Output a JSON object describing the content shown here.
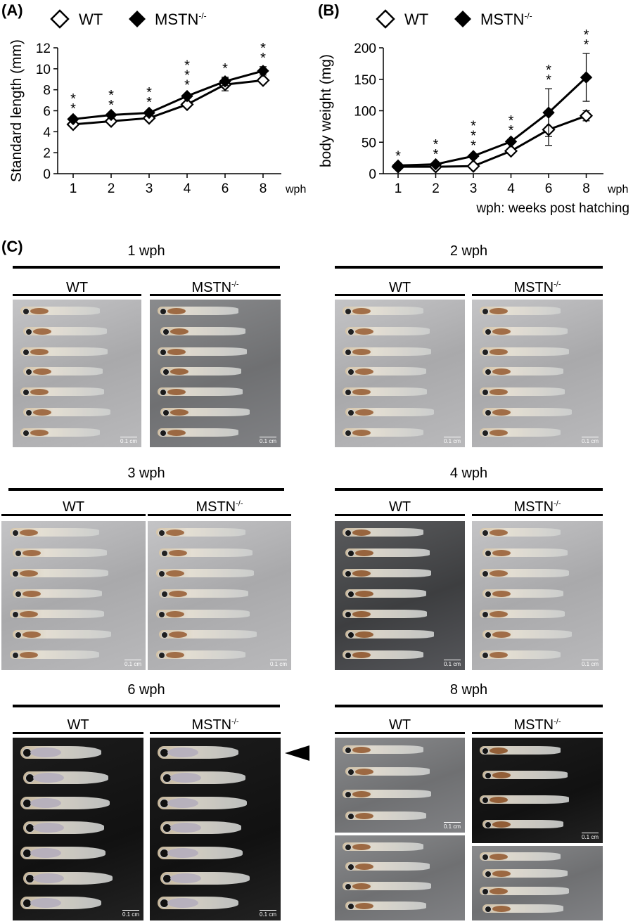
{
  "panel_a": {
    "label": "(A)"
  },
  "panel_b": {
    "label": "(B)"
  },
  "panel_c": {
    "label": "(C)"
  },
  "legend": {
    "wt": "WT",
    "mstn": "MSTN",
    "mstn_sup": "-/-"
  },
  "footnote": "wph: weeks post hatching",
  "chart_data": [
    {
      "type": "line",
      "ylabel": "Standard length (mm)",
      "xlabel_unit": "wph",
      "categories": [
        "1",
        "2",
        "3",
        "4",
        "6",
        "8"
      ],
      "ylim": [
        0,
        12
      ],
      "yticks": [
        0,
        2,
        4,
        6,
        8,
        10,
        12
      ],
      "series": [
        {
          "name": "WT",
          "marker": "open-diamond",
          "values": [
            4.7,
            5.0,
            5.3,
            6.6,
            8.5,
            8.9
          ],
          "errors": [
            0.15,
            0.1,
            0.15,
            0.2,
            0.6,
            0.3
          ]
        },
        {
          "name": "MSTN-/-",
          "marker": "filled-diamond",
          "values": [
            5.2,
            5.6,
            5.8,
            7.4,
            8.8,
            9.8
          ],
          "errors": [
            0.15,
            0.1,
            0.15,
            0.2,
            0.4,
            0.4
          ]
        }
      ],
      "significance": [
        "**",
        "**",
        "**",
        "***",
        "*",
        "**"
      ]
    },
    {
      "type": "line",
      "ylabel": "body weight (mg)",
      "xlabel_unit": "wph",
      "categories": [
        "1",
        "2",
        "3",
        "4",
        "6",
        "8"
      ],
      "ylim": [
        0,
        200
      ],
      "yticks": [
        0,
        50,
        100,
        150,
        200
      ],
      "series": [
        {
          "name": "WT",
          "marker": "open-diamond",
          "values": [
            11,
            11,
            12,
            36,
            70,
            92
          ],
          "errors": [
            1,
            1,
            2,
            4,
            25,
            8
          ]
        },
        {
          "name": "MSTN-/-",
          "marker": "filled-diamond",
          "values": [
            13,
            15,
            28,
            51,
            97,
            153
          ],
          "errors": [
            1,
            2,
            3,
            4,
            38,
            38
          ]
        }
      ],
      "significance": [
        "*",
        "**",
        "***",
        "**",
        "**",
        "**"
      ]
    }
  ],
  "photo_sections": [
    {
      "title": "1 wph",
      "wt": "WT",
      "mstn": "MSTN",
      "sup": "-/-",
      "scale": "0.1 cm"
    },
    {
      "title": "2 wph",
      "wt": "WT",
      "mstn": "MSTN",
      "sup": "-/-",
      "scale": "0.1 cm"
    },
    {
      "title": "3 wph",
      "wt": "WT",
      "mstn": "MSTN",
      "sup": "-/-",
      "scale": "0.1 cm"
    },
    {
      "title": "4 wph",
      "wt": "WT",
      "mstn": "MSTN",
      "sup": "-/-",
      "scale": "0.1 cm"
    },
    {
      "title": "6 wph",
      "wt": "WT",
      "mstn": "MSTN",
      "sup": "-/-",
      "scale": "0.1 cm"
    },
    {
      "title": "8 wph",
      "wt": "WT",
      "mstn": "MSTN",
      "sup": "-/-",
      "scale": "0.1 cm"
    }
  ]
}
